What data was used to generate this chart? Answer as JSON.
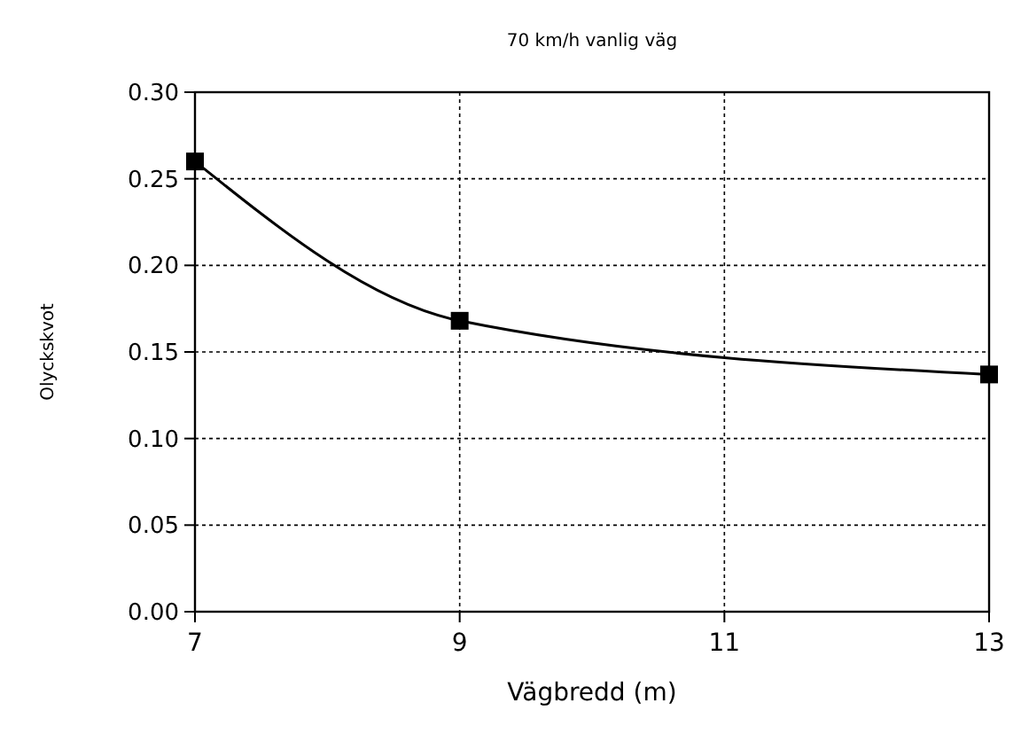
{
  "chart_data": {
    "type": "line",
    "title": "70 km/h vanlig väg",
    "xlabel": "Vägbredd (m)",
    "ylabel": "Olyckskvot",
    "x": [
      7,
      9,
      13
    ],
    "series": [
      {
        "color": "#000000",
        "values": [
          0.26,
          0.168,
          0.137
        ]
      }
    ],
    "xlim": [
      7,
      13
    ],
    "xticks": [
      7,
      9,
      11,
      13
    ],
    "ylim": [
      0,
      0.3
    ],
    "yticks": [
      {
        "value": 0,
        "label": "0.00"
      },
      {
        "value": 0.05,
        "label": "0.05"
      },
      {
        "value": 0.1,
        "label": "0.10"
      },
      {
        "value": 0.15,
        "label": "0.15"
      },
      {
        "value": 0.2,
        "label": "0.20"
      },
      {
        "value": 0.25,
        "label": "0.25"
      },
      {
        "value": 0.3,
        "label": "0.30"
      }
    ],
    "grid": true,
    "marker": "square",
    "line_style": "solid"
  }
}
